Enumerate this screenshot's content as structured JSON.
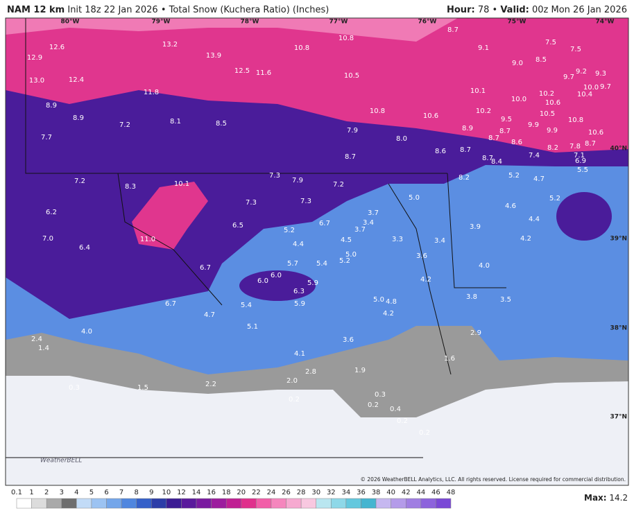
{
  "header": {
    "model": "NAM 12 km",
    "description": "Init 18z 22 Jan 2026 • Total Snow (Kuchera Ratio) (Inches)",
    "hour_label": "Hour:",
    "hour": "78",
    "separator": "•",
    "valid_label": "Valid:",
    "valid": "00z Mon 26 Jan 2026"
  },
  "map": {
    "longitudes": [
      "80°W",
      "79°W",
      "78°W",
      "77°W",
      "76°W",
      "75°W",
      "74°W"
    ],
    "latitudes": [
      "40°N",
      "39°N",
      "38°N",
      "37°N"
    ],
    "labels": [
      "12.6",
      "12.9",
      "13.0",
      "12.4",
      "13.2",
      "13.9",
      "12.5",
      "11.6",
      "10.8",
      "10.8",
      "8.7",
      "9.1",
      "7.5",
      "7.5",
      "9.0",
      "8.5",
      "9.7",
      "9.2",
      "9.3",
      "10.5",
      "11.8",
      "10.1",
      "10.0",
      "10.2",
      "10.6",
      "10.4",
      "10.0",
      "9.7",
      "8.9",
      "8.9",
      "7.2",
      "8.1",
      "8.5",
      "10.8",
      "10.6",
      "10.2",
      "10.5",
      "10.8",
      "9.5",
      "8.9",
      "8.7",
      "9.9",
      "9.9",
      "10.6",
      "7.9",
      "8.0",
      "8.7",
      "8.6",
      "7.7",
      "8.2",
      "7.8",
      "8.7",
      "7.1",
      "6.9",
      "8.6",
      "8.7",
      "7.4",
      "8.7",
      "8.4",
      "8.7",
      "5.5",
      "7.3",
      "7.9",
      "7.2",
      "7.2",
      "8.3",
      "10.1",
      "8.2",
      "5.2",
      "4.7",
      "5.0",
      "7.3",
      "7.3",
      "5.2",
      "4.6",
      "6.2",
      "3.7",
      "3.4",
      "6.5",
      "6.7",
      "3.7",
      "3.9",
      "4.4",
      "5.2",
      "3.3",
      "3.4",
      "4.2",
      "7.0",
      "11.0",
      "4.5",
      "6.4",
      "4.4",
      "5.0",
      "3.6",
      "4.0",
      "5.7",
      "5.4",
      "6.7",
      "5.2",
      "6.0",
      "4.2",
      "6.0",
      "6.3",
      "5.9",
      "3.8",
      "3.5",
      "6.7",
      "5.4",
      "5.9",
      "5.0",
      "4.8",
      "4.7",
      "4.2",
      "5.1",
      "4.0",
      "2.9",
      "3.6",
      "2.4",
      "1.4",
      "4.1",
      "1.6",
      "2.8",
      "1.9",
      "2.2",
      "2.0",
      "0.3",
      "1.5",
      "0.3",
      "0.2",
      "0.2",
      "0.4",
      "0.2",
      "0.2"
    ],
    "logo": "WeatherBELL",
    "copyright": "© 2026 WeatherBELL Analytics, LLC. All rights reserved. License required for commercial distribution."
  },
  "colorbar": {
    "labels": [
      "0.1",
      "1",
      "2",
      "3",
      "4",
      "5",
      "6",
      "7",
      "8",
      "9",
      "10",
      "12",
      "14",
      "16",
      "18",
      "20",
      "22",
      "24",
      "26",
      "28",
      "30",
      "32",
      "34",
      "36",
      "38",
      "40",
      "42",
      "44",
      "46",
      "48"
    ],
    "colors": [
      "#ffffff",
      "#dcdcdc",
      "#a9a9a9",
      "#6e6e6e",
      "#c2dbf7",
      "#9cc3f2",
      "#74a6ea",
      "#4f86df",
      "#3560c9",
      "#2c3da8",
      "#3c1c94",
      "#5a1a9c",
      "#7a1aa0",
      "#9c1c9e",
      "#c01f93",
      "#e0308c",
      "#f25ea8",
      "#f586bd",
      "#f6a9d0",
      "#f8c8e0",
      "#b9e6f0",
      "#8ed8e8",
      "#63c8de",
      "#45b5d0",
      "#c6b8f0",
      "#b49be9",
      "#a07ee2",
      "#8d63dc",
      "#7a48d6"
    ],
    "max_label": "Max:",
    "max": "14.2"
  }
}
